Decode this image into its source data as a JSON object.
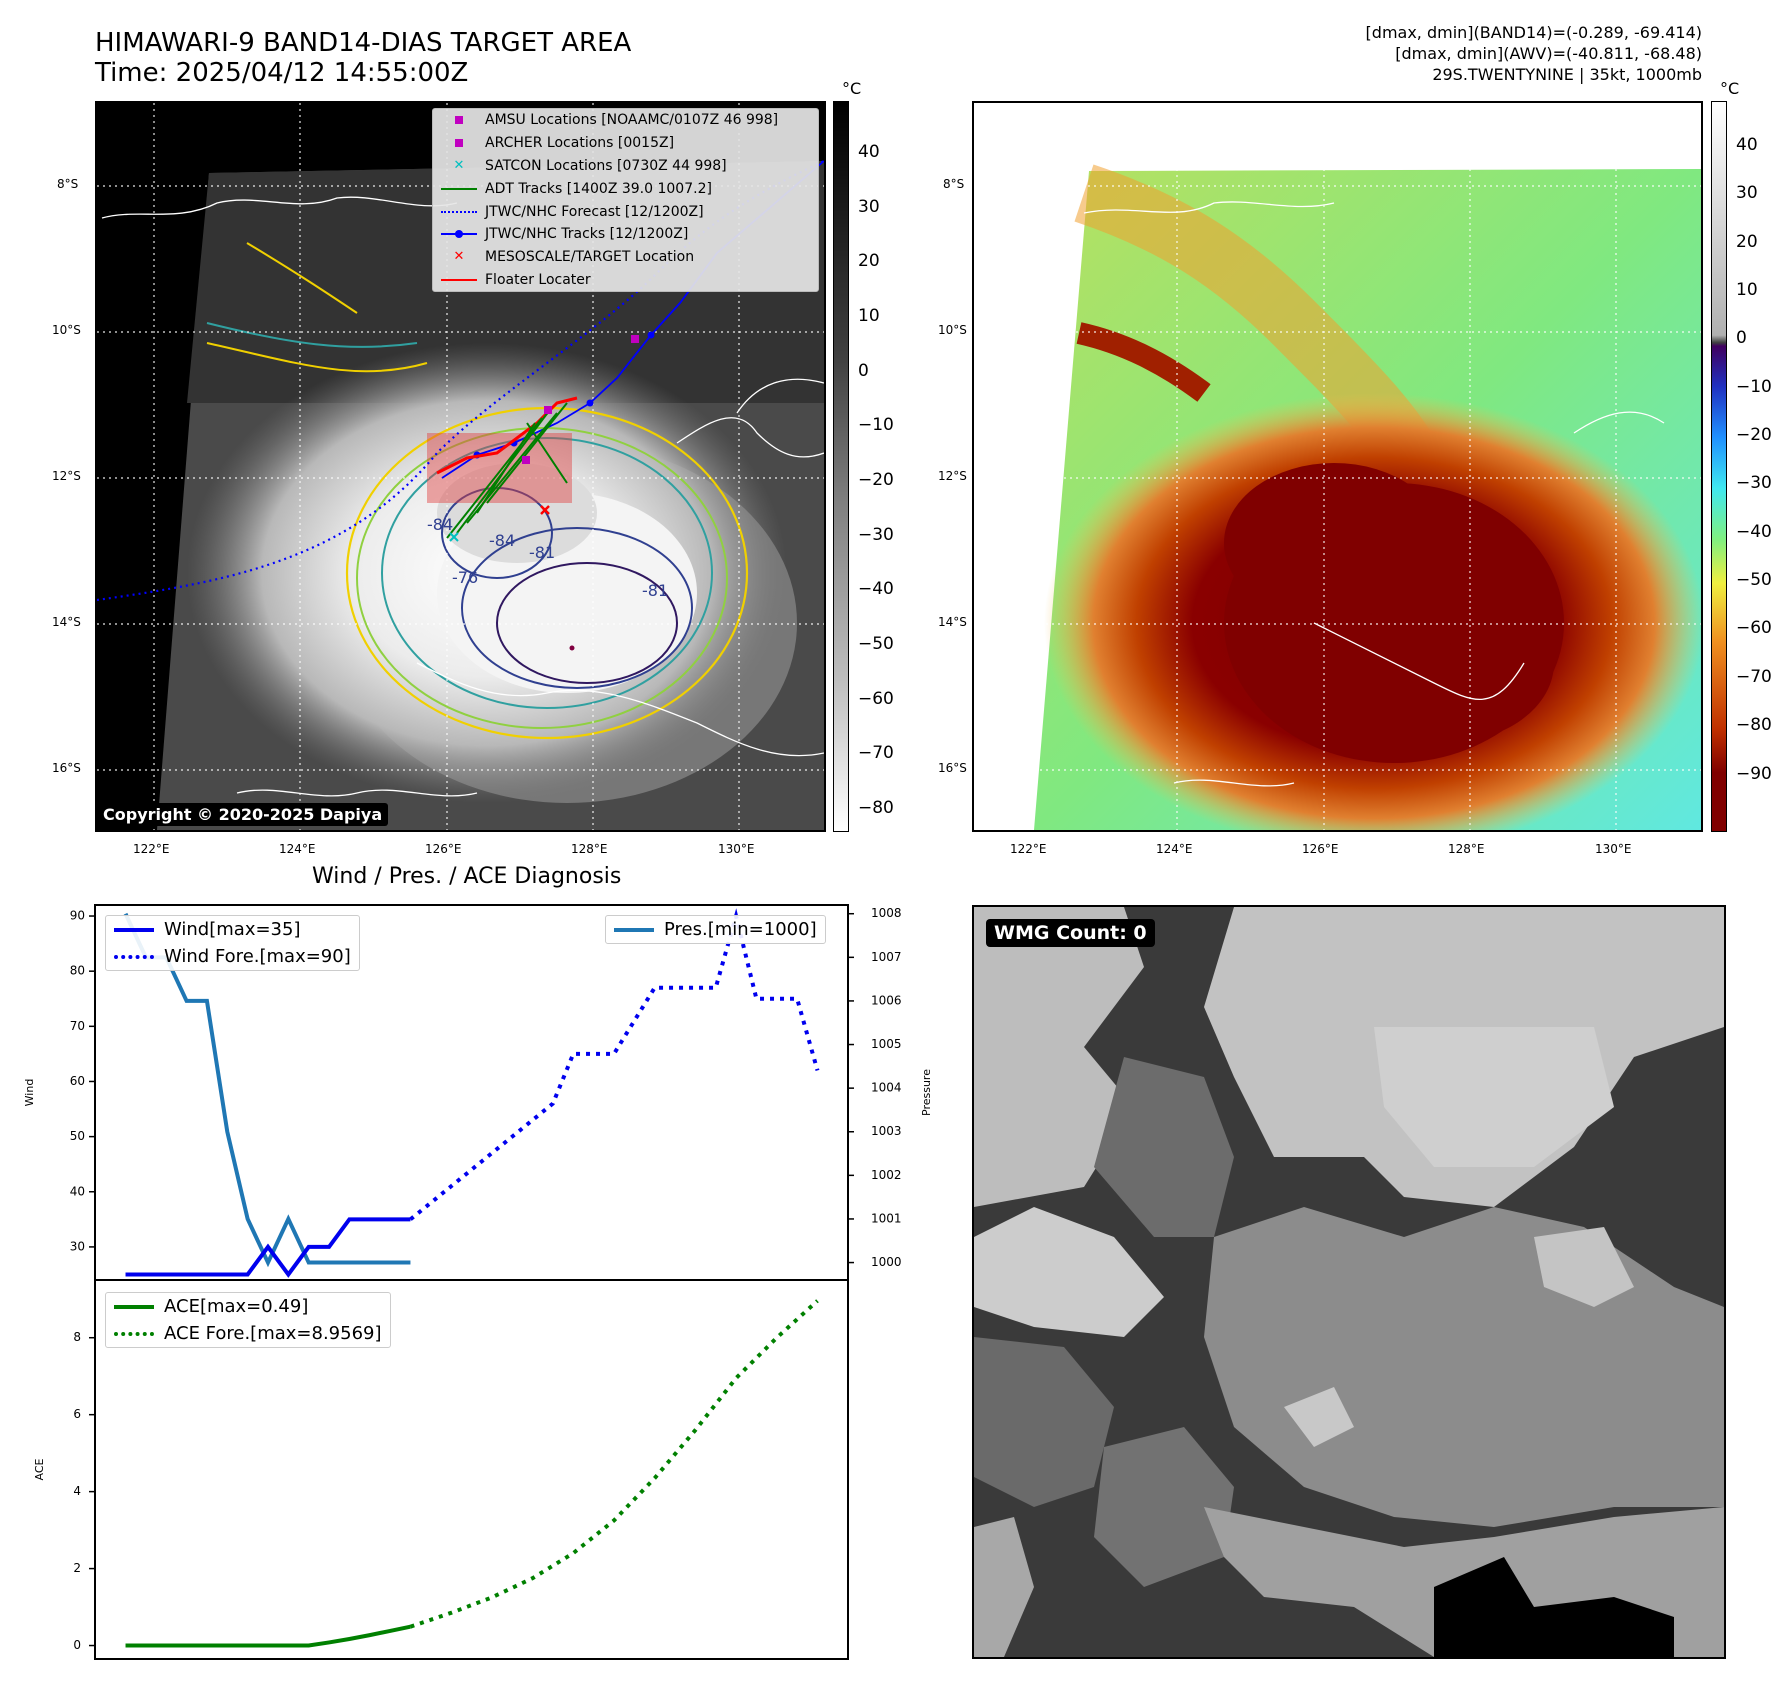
{
  "header": {
    "title_line1": "HIMAWARI-9 BAND14-DIAS TARGET AREA",
    "title_line2": "Time: 2025/04/12 14:55:00Z",
    "info_line1": "[dmax, dmin](BAND14)=(-0.289, -69.414)",
    "info_line2": "[dmax, dmin](AWV)=(-40.811, -68.48)",
    "info_line3": "29S.TWENTYNINE | 35kt, 1000mb"
  },
  "map_axes": {
    "lon_ticks": [
      "122°E",
      "124°E",
      "126°E",
      "128°E",
      "130°E"
    ],
    "lat_ticks": [
      "8°S",
      "10°S",
      "12°S",
      "14°S",
      "16°S"
    ]
  },
  "left_map": {
    "legend": [
      {
        "label": "AMSU Locations [NOAAMC/0107Z 46 998]",
        "symbol": "square",
        "color": "#c000c0"
      },
      {
        "label": "ARCHER Locations [0015Z]",
        "symbol": "square",
        "color": "#c000c0"
      },
      {
        "label": "SATCON Locations [0730Z 44 998]",
        "symbol": "x",
        "color": "#00c0c0"
      },
      {
        "label": "ADT Tracks [1400Z 39.0 1007.2]",
        "symbol": "line",
        "color": "#008000"
      },
      {
        "label": "JTWC/NHC Forecast [12/1200Z]",
        "symbol": "dotted",
        "color": "#0000ff"
      },
      {
        "label": "JTWC/NHC Tracks [12/1200Z]",
        "symbol": "line-dot",
        "color": "#0000ff"
      },
      {
        "label": "MESOSCALE/TARGET Location",
        "symbol": "x",
        "color": "#ff0000"
      },
      {
        "label": "Floater Locater",
        "symbol": "line",
        "color": "#ff0000"
      }
    ],
    "contour_labels": [
      "-84",
      "-81",
      "-76",
      "-81",
      "-84"
    ],
    "copyright": "Copyright © 2020-2025 Dapiya"
  },
  "colorbar_left": {
    "unit": "°C",
    "ticks": [
      "40",
      "30",
      "20",
      "10",
      "0",
      "−10",
      "−20",
      "−30",
      "−40",
      "−50",
      "−60",
      "−70",
      "−80"
    ]
  },
  "colorbar_right": {
    "unit": "°C",
    "ticks": [
      "40",
      "30",
      "20",
      "10",
      "0",
      "−10",
      "−20",
      "−30",
      "−40",
      "−50",
      "−60",
      "−70",
      "−80",
      "−90"
    ]
  },
  "wmg_panel": {
    "label": "WMG Count: 0"
  },
  "chart_data": [
    {
      "type": "line",
      "title": "Wind / Pres. / ACE Diagnosis",
      "ylabel": "Wind",
      "ylabel_right": "Pressure",
      "ylim": [
        24,
        92
      ],
      "ylim_right": [
        999.6,
        1008.2
      ],
      "yticks": [
        30,
        40,
        50,
        60,
        70,
        80,
        90
      ],
      "yticks_right": [
        1000,
        1001,
        1002,
        1003,
        1004,
        1005,
        1006,
        1007,
        1008
      ],
      "series": [
        {
          "name": "Wind[max=35]",
          "axis": "left",
          "style": "solid",
          "color": "#0000ee",
          "x": [
            0,
            1,
            2,
            3,
            4,
            5,
            6,
            7,
            8,
            9,
            10,
            11,
            12,
            13,
            14
          ],
          "y": [
            25,
            25,
            25,
            25,
            25,
            25,
            25,
            30,
            25,
            30,
            30,
            35,
            35,
            35,
            35
          ]
        },
        {
          "name": "Wind Fore.[max=90]",
          "axis": "left",
          "style": "dotted",
          "color": "#0000ee",
          "x": [
            14,
            15,
            16,
            17,
            18,
            19,
            20,
            21,
            22,
            23,
            24,
            25,
            26,
            27,
            28,
            29,
            30,
            31,
            32,
            33,
            34
          ],
          "y": [
            35,
            38,
            41,
            44,
            47,
            50,
            53,
            56,
            65,
            65,
            65,
            71,
            77,
            77,
            77,
            77,
            90,
            75,
            75,
            75,
            62
          ]
        },
        {
          "name": "Pres.[min=1000]",
          "axis": "right",
          "style": "solid",
          "color": "#1f77b4",
          "x": [
            0,
            1,
            2,
            3,
            4,
            5,
            6,
            7,
            8,
            9,
            10,
            11,
            12,
            13,
            14
          ],
          "y": [
            1008,
            1007,
            1007,
            1006,
            1006,
            1003,
            1001,
            1000,
            1001,
            1000,
            1000,
            1000,
            1000,
            1000,
            1000
          ]
        }
      ]
    },
    {
      "type": "line",
      "ylabel": "ACE",
      "ylim": [
        -0.35,
        9.5
      ],
      "yticks": [
        0,
        2,
        4,
        6,
        8
      ],
      "series": [
        {
          "name": "ACE[max=0.49]",
          "style": "solid",
          "color": "#008000",
          "x": [
            0,
            1,
            2,
            3,
            4,
            5,
            6,
            7,
            8,
            9,
            10,
            11,
            12,
            13,
            14
          ],
          "y": [
            0,
            0,
            0,
            0,
            0,
            0,
            0,
            0,
            0,
            0,
            0.08,
            0.17,
            0.27,
            0.38,
            0.49
          ]
        },
        {
          "name": "ACE Fore.[max=8.9569]",
          "style": "dotted",
          "color": "#008000",
          "x": [
            14,
            16,
            18,
            20,
            22,
            24,
            26,
            28,
            30,
            32,
            34
          ],
          "y": [
            0.49,
            0.85,
            1.25,
            1.75,
            2.4,
            3.25,
            4.35,
            5.6,
            6.95,
            8.0,
            8.96
          ]
        }
      ]
    }
  ]
}
